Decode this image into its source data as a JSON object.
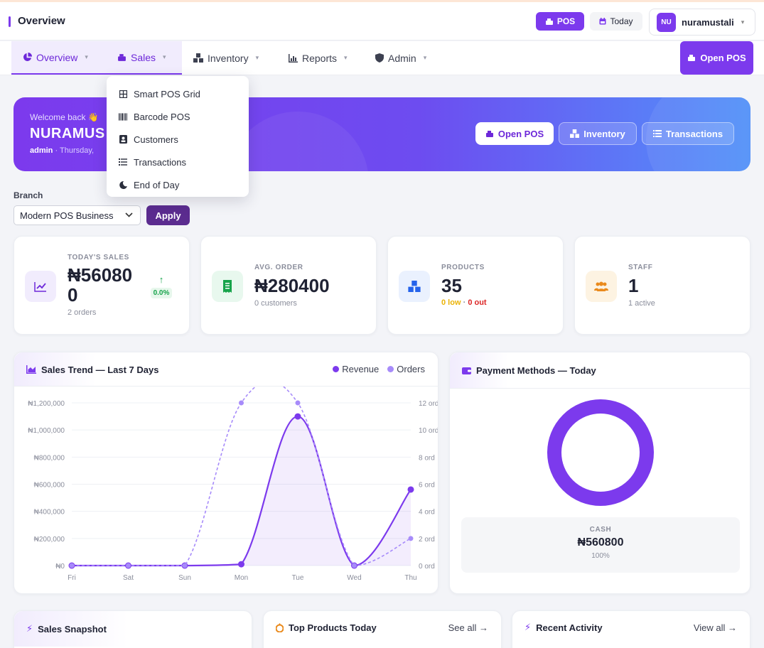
{
  "header": {
    "title": "Overview",
    "pos_label": "POS",
    "today_label": "Today",
    "user_initials": "NU",
    "username": "nuramustali"
  },
  "nav": {
    "items": [
      {
        "label": "Overview"
      },
      {
        "label": "Sales"
      },
      {
        "label": "Inventory"
      },
      {
        "label": "Reports"
      },
      {
        "label": "Admin"
      }
    ],
    "open_pos_label": "Open POS"
  },
  "sales_menu": {
    "items": [
      {
        "label": "Smart POS Grid",
        "icon": "grid-icon"
      },
      {
        "label": "Barcode POS",
        "icon": "barcode-icon"
      },
      {
        "label": "Customers",
        "icon": "contact-card-icon"
      },
      {
        "label": "Transactions",
        "icon": "list-icon"
      },
      {
        "label": "End of Day",
        "icon": "moon-icon"
      }
    ]
  },
  "hero": {
    "welcome": "Welcome back 👋",
    "name": "NURAMUS",
    "role": "admin",
    "date_partial": "Thursday,",
    "buttons": {
      "open_pos": "Open POS",
      "inventory": "Inventory",
      "transactions": "Transactions"
    }
  },
  "branch": {
    "label": "Branch",
    "selected": "Modern POS Business",
    "apply_label": "Apply"
  },
  "stats": [
    {
      "label": "TODAY'S SALES",
      "value_line1": "₦56080",
      "value_line2": "0",
      "sub": "2 orders",
      "trend": "0.0%"
    },
    {
      "label": "AVG. ORDER",
      "value": "₦280400",
      "sub": "0 customers"
    },
    {
      "label": "PRODUCTS",
      "value": "35",
      "low": "0 low",
      "out": "0 out"
    },
    {
      "label": "STAFF",
      "value": "1",
      "sub": "1 active"
    }
  ],
  "sales_trend": {
    "title": "Sales Trend — Last 7 Days",
    "legend": {
      "revenue": "Revenue",
      "orders": "Orders"
    }
  },
  "chart_data": {
    "type": "line",
    "categories": [
      "Fri",
      "Sat",
      "Sun",
      "Mon",
      "Tue",
      "Wed",
      "Thu"
    ],
    "series": [
      {
        "name": "Revenue",
        "axis": "left",
        "values": [
          0,
          0,
          0,
          10000,
          1100000,
          0,
          560800
        ],
        "color": "#7c3aed",
        "style": "solid",
        "fill": true
      },
      {
        "name": "Orders",
        "axis": "right",
        "values": [
          0,
          0,
          0,
          12,
          12,
          0,
          2
        ],
        "color": "#a78bfa",
        "style": "dashed",
        "fill": false
      }
    ],
    "y_left": {
      "min": 0,
      "max": 1200000,
      "ticks": [
        "₦0",
        "₦200,000",
        "₦400,000",
        "₦600,000",
        "₦800,000",
        "₦1,000,000",
        "₦1,200,000"
      ]
    },
    "y_right": {
      "min": 0,
      "max": 12,
      "ticks": [
        "0 ord",
        "2 ord",
        "4 ord",
        "6 ord",
        "8 ord",
        "10 ord",
        "12 ord"
      ]
    },
    "grid": true,
    "legend_position": "top-right"
  },
  "payment": {
    "title": "Payment Methods — Today",
    "method": "CASH",
    "amount": "₦560800",
    "percent": "100%",
    "color": "#7c3aed"
  },
  "bottom": {
    "snapshot_title": "Sales Snapshot",
    "top_products_title": "Top Products Today",
    "see_all": "See all →",
    "recent_title": "Recent Activity",
    "view_all": "View all →"
  },
  "colors": {
    "accent": "#7c3aed",
    "accent_dark": "#5b2c8f",
    "success": "#16a34a",
    "warning": "#eab308",
    "danger": "#dc2626"
  }
}
